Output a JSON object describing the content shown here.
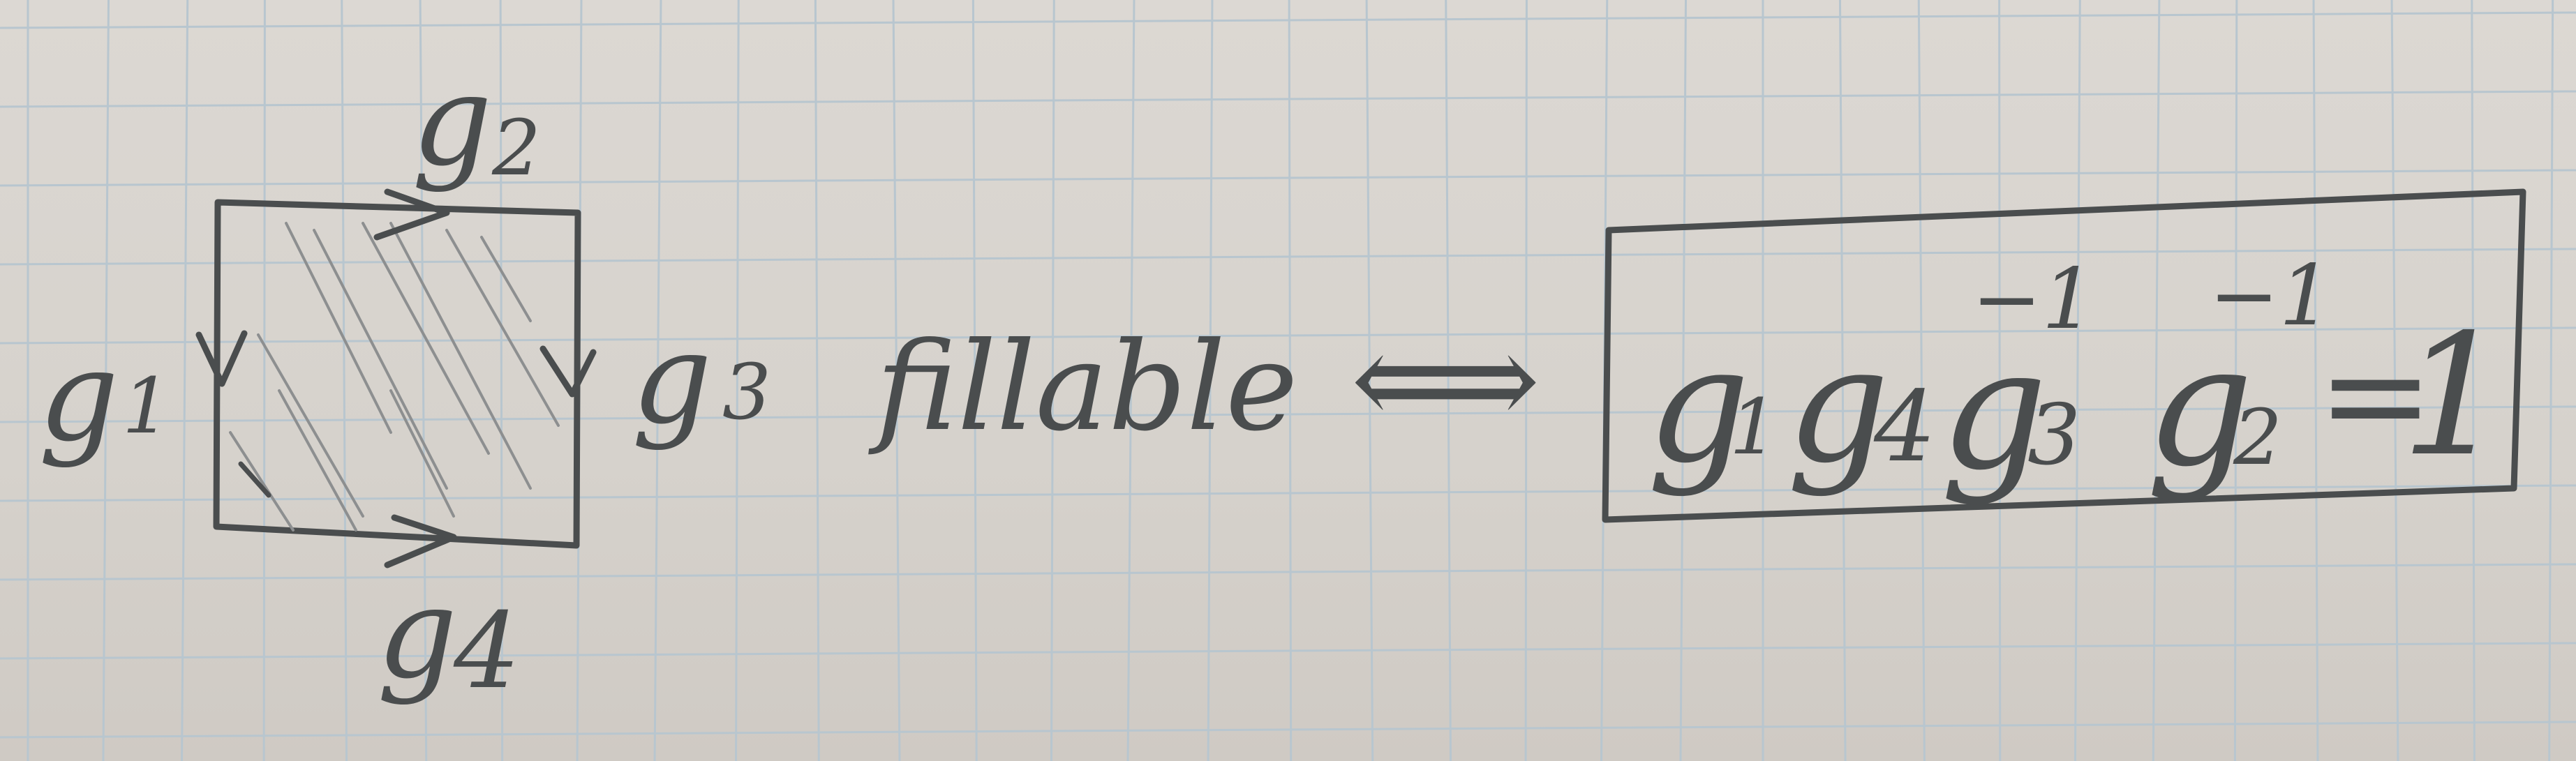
{
  "labels": {
    "g1": "g",
    "g1_sub": "1",
    "g2": "g",
    "g2_sub": "2",
    "g3": "g",
    "g3_sub": "3",
    "g4": "g",
    "g4_sub": "4",
    "fillable": "fillable",
    "iff": "⟺"
  },
  "equation": {
    "g1": "g",
    "g1_sub": "1",
    "g4": "g",
    "g4_sub": "4",
    "g3": "g",
    "g3_sub": "3",
    "g3_sup": "−1",
    "g2": "g",
    "g2_sub": "2",
    "g2_sup": "−1",
    "equals": "=",
    "one": "1"
  },
  "colors": {
    "ink": "#4a4d4e",
    "paper": "#d9d5d0",
    "grid": "#b8c6cf",
    "hatch": "#8d8f90"
  }
}
